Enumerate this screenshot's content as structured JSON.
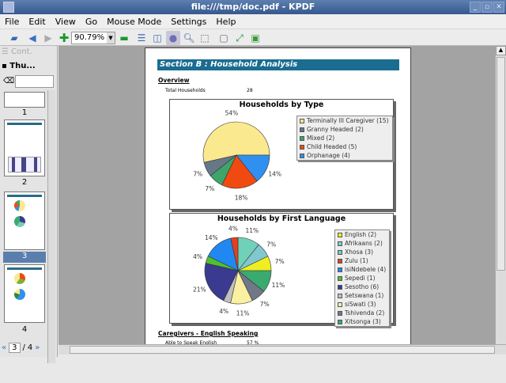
{
  "window": {
    "title": "file:///tmp/doc.pdf - KPDF",
    "controls": [
      "_",
      "▫",
      "✕"
    ]
  },
  "menu": [
    "File",
    "Edit",
    "View",
    "Go",
    "Mouse Mode",
    "Settings",
    "Help"
  ],
  "toolbar": {
    "zoom_value": "90.79%"
  },
  "sidebar": {
    "tab_contents": "Cont.",
    "tab_thumbnails": "Thu...",
    "search_placeholder": "",
    "thumbnails": [
      "1",
      "2",
      "3",
      "4"
    ],
    "selected": "3",
    "page_current": "3",
    "page_total": "4",
    "page_sep": "/"
  },
  "document": {
    "section_title": "Section B : Household Analysis",
    "overview_heading": "Overview",
    "total_label": "Total Households",
    "total_value": "28",
    "caregivers_heading": "Caregivers - English Speaking",
    "english_label": "Able to Speak English",
    "english_value": "57 %"
  },
  "charts": [
    {
      "type": "pie",
      "title": "Households by Type",
      "slices": [
        {
          "label": "Terminally Ill Caregiver (15)",
          "value": 15,
          "pct": "54%",
          "color": "#fbe98f"
        },
        {
          "label": "Granny Headed (2)",
          "value": 2,
          "pct": "7%",
          "color": "#667788"
        },
        {
          "label": "Mixed (2)",
          "value": 2,
          "pct": "7%",
          "color": "#3fa46a"
        },
        {
          "label": "Child Headed  (5)",
          "value": 5,
          "pct": "18%",
          "color": "#f04a10"
        },
        {
          "label": "Orphanage (4)",
          "value": 4,
          "pct": "14%",
          "color": "#3090f0"
        }
      ]
    },
    {
      "type": "pie",
      "title": "Households by First Language",
      "slices": [
        {
          "label": "English (2)",
          "value": 2,
          "pct": "7%",
          "color": "#f0ee20"
        },
        {
          "label": "Afrikaans (2)",
          "value": 2,
          "pct": "7%",
          "color": "#80c8d0"
        },
        {
          "label": "Xhosa (3)",
          "value": 3,
          "pct": "11%",
          "color": "#70d0b8"
        },
        {
          "label": "Zulu (1)",
          "value": 1,
          "pct": "4%",
          "color": "#e04020"
        },
        {
          "label": "isiNdebele (4)",
          "value": 4,
          "pct": "14%",
          "color": "#2088f0"
        },
        {
          "label": "Sepedi (1)",
          "value": 1,
          "pct": "4%",
          "color": "#50c030"
        },
        {
          "label": "Sesotho (6)",
          "value": 6,
          "pct": "21%",
          "color": "#3a3a90"
        },
        {
          "label": "Setswana (1)",
          "value": 1,
          "pct": "4%",
          "color": "#c0c0c0"
        },
        {
          "label": "siSwati (3)",
          "value": 3,
          "pct": "11%",
          "color": "#faf0a0"
        },
        {
          "label": "Tshivenda (2)",
          "value": 2,
          "pct": "7%",
          "color": "#707888"
        },
        {
          "label": "Xitsonga (3)",
          "value": 3,
          "pct": "11%",
          "color": "#3aaa70"
        }
      ]
    }
  ]
}
